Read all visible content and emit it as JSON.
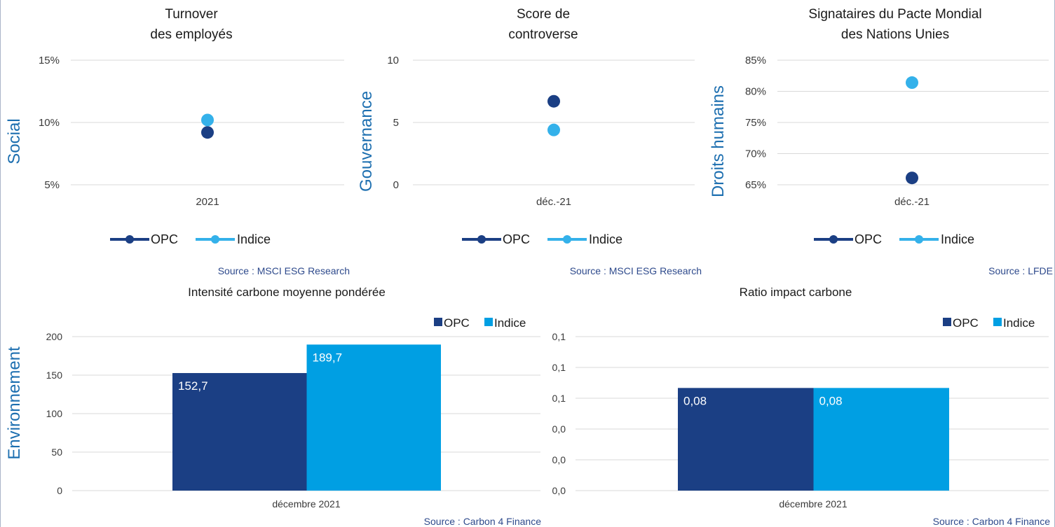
{
  "colors": {
    "opc": "#1b3f84",
    "indice_dot": "#34b1ea",
    "indice_bar": "#009fe3",
    "section": "#1d6fb0",
    "source": "#2e4a8c"
  },
  "chart_data": [
    {
      "id": "turnover",
      "type": "scatter",
      "section_label": "Social",
      "title_lines": [
        "Turnover",
        "des employés"
      ],
      "categories": [
        "2021"
      ],
      "y_ticks": [
        "15%",
        "10%",
        "5%"
      ],
      "ylim": [
        5,
        15
      ],
      "series": [
        {
          "name": "OPC",
          "values": [
            9.2
          ]
        },
        {
          "name": "Indice",
          "values": [
            10.2
          ]
        }
      ],
      "legend": [
        "OPC",
        "Indice"
      ],
      "source": "Source : MSCI ESG Research"
    },
    {
      "id": "controverse",
      "type": "scatter",
      "section_label": "Gouvernance",
      "title_lines": [
        "Score de",
        "controverse"
      ],
      "categories": [
        "déc.-21"
      ],
      "y_ticks": [
        "10",
        "5",
        "0"
      ],
      "ylim": [
        0,
        10
      ],
      "series": [
        {
          "name": "OPC",
          "values": [
            6.7
          ]
        },
        {
          "name": "Indice",
          "values": [
            4.4
          ]
        }
      ],
      "legend": [
        "OPC",
        "Indice"
      ],
      "source": "Source : MSCI ESG Research"
    },
    {
      "id": "pacte",
      "type": "scatter",
      "section_label": "Droits humains",
      "title_lines": [
        "Signataires du Pacte Mondial",
        "des Nations Unies"
      ],
      "categories": [
        "déc.-21"
      ],
      "y_ticks": [
        "85%",
        "80%",
        "75%",
        "70%",
        "65%"
      ],
      "ylim": [
        65,
        85
      ],
      "series": [
        {
          "name": "OPC",
          "values": [
            66.1
          ]
        },
        {
          "name": "Indice",
          "values": [
            81.4
          ]
        }
      ],
      "legend": [
        "OPC",
        "Indice"
      ],
      "source": "Source : LFDE"
    },
    {
      "id": "intensite",
      "type": "bar",
      "section_label": "Environnement",
      "title_lines": [
        "Intensité carbone moyenne pondérée"
      ],
      "categories": [
        "décembre 2021"
      ],
      "y_ticks": [
        "200",
        "150",
        "100",
        "50",
        "0"
      ],
      "ylim": [
        0,
        200
      ],
      "series": [
        {
          "name": "OPC",
          "values": [
            152.7
          ],
          "labels": [
            "152,7"
          ]
        },
        {
          "name": "Indice",
          "values": [
            189.7
          ],
          "labels": [
            "189,7"
          ]
        }
      ],
      "legend": [
        "OPC",
        "Indice"
      ],
      "source": "Source : Carbon 4 Finance"
    },
    {
      "id": "ratio",
      "type": "bar",
      "section_label": "",
      "title_lines": [
        "Ratio impact carbone"
      ],
      "categories": [
        "décembre 2021"
      ],
      "y_ticks": [
        "0,1",
        "0,1",
        "0,1",
        "0,0",
        "0,0",
        "0,0"
      ],
      "ylim": [
        0,
        0.12
      ],
      "series": [
        {
          "name": "OPC",
          "values": [
            0.08
          ],
          "labels": [
            "0,08"
          ]
        },
        {
          "name": "Indice",
          "values": [
            0.08
          ],
          "labels": [
            "0,08"
          ]
        }
      ],
      "legend": [
        "OPC",
        "Indice"
      ],
      "source": "Source : Carbon 4 Finance"
    }
  ]
}
